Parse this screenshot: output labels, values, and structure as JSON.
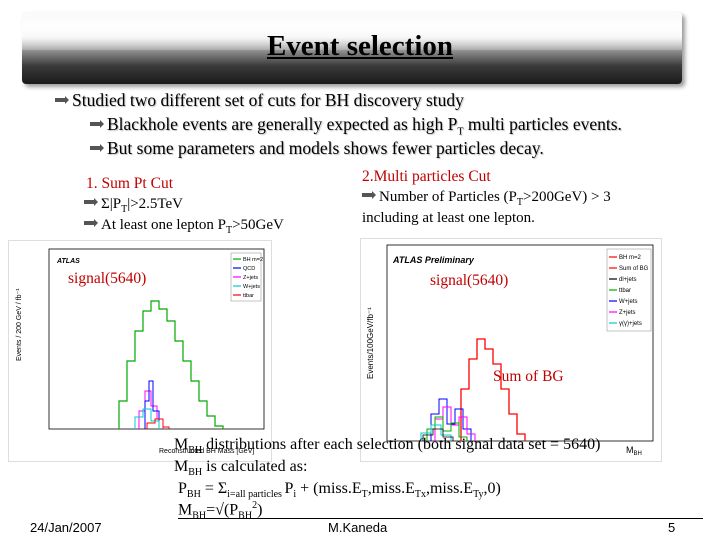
{
  "slide": {
    "title": "Event selection",
    "bullets": [
      "Studied two different set of cuts for BH discovery study",
      "Blackhole events are generally expected as high P",
      " multi particles events.",
      "But some parameters and models shows fewer particles decay."
    ],
    "sub_T": "T"
  },
  "cut1": {
    "heading": "1. Sum Pt Cut",
    "line1_pre": "Σ|P",
    "line1_post": "|>2.5TeV",
    "line2_pre": "At least one lepton P",
    "line2_post": ">50GeV",
    "signal_label": "signal(5640)"
  },
  "cut2": {
    "heading": "2.Multi particles Cut",
    "line1_pre": "Number of Particles (P",
    "line1_post": ">200GeV) > 3",
    "line2": "including at least one lepton.",
    "signal_label": "signal(5640)",
    "bg_label": "Sum of BG"
  },
  "plot_left": {
    "brand": "ATLAS",
    "ylabel": "Events / 200 GeV / fb⁻¹",
    "xlabel": "Reconstructed BH Mass [GeV]",
    "legend": [
      "BH m=2",
      "QCD",
      "Z+jets",
      "W+jets",
      "ttbar"
    ],
    "colors": [
      "#00aa00",
      "#0000ff",
      "#ff00ff",
      "#00cccc",
      "#ff0000"
    ]
  },
  "plot_right": {
    "brand": "ATLAS Preliminary",
    "ylabel": "Events/100GeV/fb⁻¹",
    "xlabel": "M",
    "xlabel_sub": "BH",
    "legend": [
      "BH m=2",
      "Sum of BG",
      "dl+jets",
      "ttbar",
      "W+jets",
      "Z+jets",
      "γ(γ)+jets"
    ],
    "colors": [
      "#ff0000",
      "#ff0000",
      "#000000",
      "#00aa00",
      "#0000ff",
      "#ff00ff",
      "#00cccc"
    ]
  },
  "caption": {
    "line1_pre": "M",
    "line1_sub": "BH",
    "line1_post": " distributions after each selection (both signal data set = 5640)",
    "line2_pre": "M",
    "line2_sub": "BH",
    "line2_post": " is calculated as:",
    "line3_a": "P",
    "line3_a_sub": "BH",
    "line3_b": " = Σ",
    "line3_b_sub": "i=all particles ",
    "line3_c": "P",
    "line3_c_sub": "i",
    "line3_d": " + (miss.E",
    "line3_d_sub": "T",
    "line3_e": ",miss.E",
    "line3_e_sub": "Tx",
    "line3_f": ",miss.E",
    "line3_f_sub": "Ty",
    "line3_g": ",0)",
    "line4_a": "M",
    "line4_a_sub": "BH",
    "line4_b": "=√(P",
    "line4_b_sub": "BH",
    "line4_sup": "2",
    "line4_c": ")"
  },
  "footer": {
    "date": "24/Jan/2007",
    "author": "M.Kaneda",
    "page": "5"
  }
}
